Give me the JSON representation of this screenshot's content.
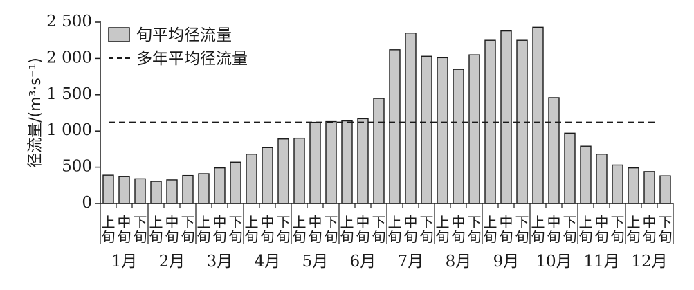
{
  "chart_data": {
    "type": "bar",
    "ylabel": "径流量/(m³·s⁻¹)",
    "ylim": [
      0,
      2500
    ],
    "yticks": [
      0,
      500,
      1000,
      1500,
      2000,
      2500
    ],
    "ytick_labels": [
      "0",
      "500",
      "1 000",
      "1 500",
      "2 000",
      "2 500"
    ],
    "months": [
      "1月",
      "2月",
      "3月",
      "4月",
      "5月",
      "6月",
      "7月",
      "8月",
      "9月",
      "10月",
      "11月",
      "12月"
    ],
    "dekads": [
      {
        "top": "上",
        "bottom": "旬"
      },
      {
        "top": "中",
        "bottom": "旬"
      },
      {
        "top": "下",
        "bottom": "旬"
      }
    ],
    "series": [
      {
        "name": "旬平均径流量",
        "color": "#c8c8c8",
        "values": [
          390,
          370,
          340,
          305,
          325,
          385,
          410,
          490,
          570,
          680,
          770,
          890,
          900,
          1120,
          1130,
          1140,
          1170,
          1450,
          2120,
          2350,
          2030,
          2010,
          1850,
          2050,
          2250,
          2380,
          2250,
          2430,
          1460,
          970,
          790,
          680,
          530,
          490,
          440,
          380
        ]
      }
    ],
    "reference_line": {
      "name": "多年平均径流量",
      "value": 1120,
      "style": "dashed",
      "color": "#1a1a1a"
    },
    "legend": {
      "position": "top-left",
      "items": [
        "旬平均径流量",
        "多年平均径流量"
      ]
    },
    "grid": false
  }
}
